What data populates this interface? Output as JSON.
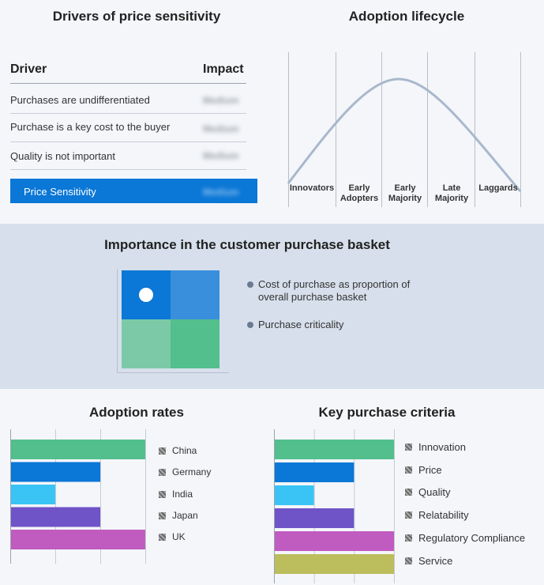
{
  "price_sensitivity": {
    "title": "Drivers of price sensitivity",
    "col_driver": "Driver",
    "col_impact": "Impact",
    "rows": [
      {
        "driver": "Purchases are undifferentiated",
        "impact": "Medium"
      },
      {
        "driver": "Purchase is a key cost to the buyer",
        "impact": "Medium"
      },
      {
        "driver": "Quality is not important",
        "impact": "Medium"
      }
    ],
    "summary": {
      "label": "Price Sensitivity",
      "impact": "Medium"
    }
  },
  "adoption_lifecycle": {
    "title": "Adoption lifecycle",
    "stages": [
      {
        "line1": "",
        "line2": "Innovators"
      },
      {
        "line1": "Early",
        "line2": "Adopters"
      },
      {
        "line1": "Early",
        "line2": "Majority"
      },
      {
        "line1": "Late",
        "line2": "Majority"
      },
      {
        "line1": "",
        "line2": "Laggards"
      }
    ],
    "curve_color": "#a9b8cc"
  },
  "purchase_basket": {
    "title": "Importance in the customer purchase basket",
    "legend": [
      {
        "line1": "Cost of purchase as proportion of",
        "line2": "overall purchase basket"
      },
      {
        "line1": "Purchase criticality",
        "line2": ""
      }
    ],
    "quadrant_colors": [
      "#0b77d6",
      "#3a8fdc",
      "#7cc9a8",
      "#52bf8c"
    ]
  },
  "chart_data": [
    {
      "type": "bar",
      "title": "Adoption rates",
      "orientation": "horizontal",
      "categories": [
        "China",
        "Germany",
        "India",
        "Japan",
        "UK"
      ],
      "values": [
        3,
        2,
        1,
        2,
        3
      ],
      "xlim": [
        0,
        3
      ],
      "grid": true,
      "legend_position": "right",
      "colors": [
        "#52bf8c",
        "#0b77d6",
        "#39c4f5",
        "#6e54c6",
        "#c05bc0"
      ]
    },
    {
      "type": "bar",
      "title": "Key purchase criteria",
      "orientation": "horizontal",
      "categories": [
        "Innovation",
        "Price",
        "Quality",
        "Relatability",
        "Regulatory Compliance",
        "Service"
      ],
      "values": [
        3,
        2,
        1,
        2,
        3,
        3
      ],
      "xlim": [
        0,
        3
      ],
      "grid": true,
      "legend_position": "right",
      "colors": [
        "#52bf8c",
        "#0b77d6",
        "#39c4f5",
        "#6e54c6",
        "#c05bc0",
        "#bcbd5c"
      ]
    }
  ]
}
